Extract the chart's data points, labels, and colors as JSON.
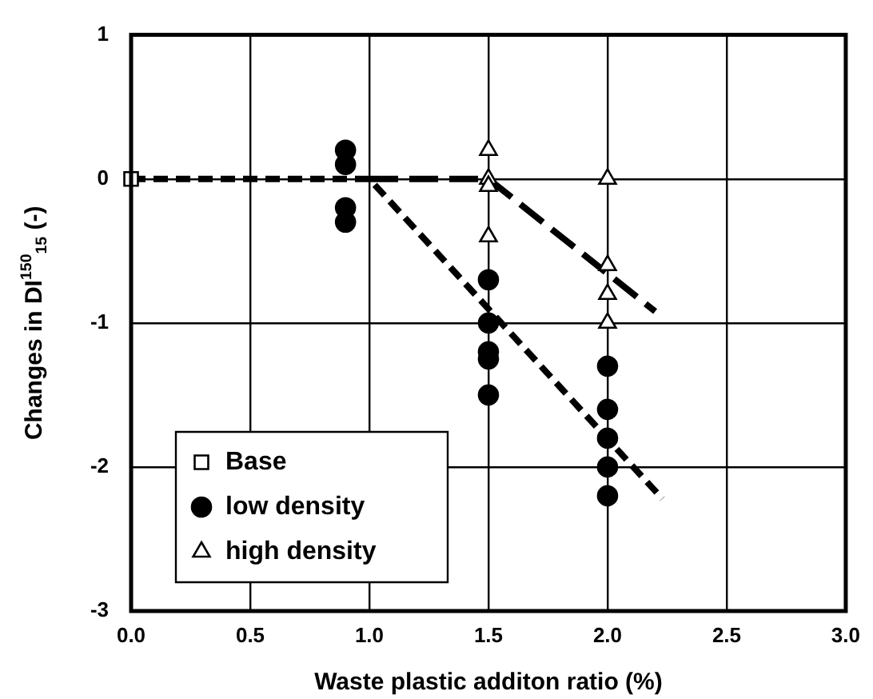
{
  "chart_data": {
    "type": "scatter",
    "xlabel": "Waste plastic additon ratio (%)",
    "ylabel": "Changes in DI$^{150}$$_{15}$ (-)",
    "xlim": [
      0,
      3
    ],
    "xticks": [
      {
        "value": 0,
        "label": "0.0"
      },
      {
        "value": 0.5,
        "label": "0.5"
      },
      {
        "value": 1,
        "label": "1.0"
      },
      {
        "value": 1.5,
        "label": "1.5"
      },
      {
        "value": 2,
        "label": "2.0"
      },
      {
        "value": 2.5,
        "label": "2.5"
      },
      {
        "value": 3,
        "label": "3.0"
      }
    ],
    "ylim": [
      -3,
      1
    ],
    "yticks": [
      -3,
      -2,
      -1,
      0,
      1
    ],
    "grid": true,
    "legend": "bottom left",
    "series": [
      {
        "type": "line",
        "line_style": "dashed",
        "marker": "none",
        "color": "#000000",
        "x": [
          0,
          1,
          2.23
        ],
        "values": [
          0,
          0,
          -2.22
        ]
      },
      {
        "type": "line",
        "line_style": "dashed",
        "marker": "none",
        "color": "#000000",
        "x": [
          1,
          1.5,
          2.2
        ],
        "values": [
          0,
          0,
          -0.92
        ]
      },
      {
        "name": "Base",
        "marker": "square",
        "color": "#000000",
        "x": [
          0
        ],
        "values": [
          0
        ]
      },
      {
        "name": "low density",
        "marker": "circle",
        "color": "#000000",
        "x": [
          0.9,
          0.9,
          0.9,
          0.9,
          1.5,
          1.5,
          1.5,
          1.5,
          1.5,
          2,
          2,
          2,
          2,
          2
        ],
        "values": [
          0.2,
          0.1,
          -0.2,
          -0.3,
          -0.7,
          -1,
          -1.2,
          -1.25,
          -1.5,
          -1.3,
          -1.6,
          -1.8,
          -2,
          -2.2
        ]
      },
      {
        "name": "high density",
        "marker": "triangle",
        "color": "#000000",
        "x": [
          1.5,
          1.5,
          1.5,
          1.5,
          2,
          2,
          2,
          2
        ],
        "values": [
          0.2,
          0,
          -0.05,
          -0.4,
          0,
          -0.6,
          -0.8,
          -1
        ]
      }
    ]
  }
}
